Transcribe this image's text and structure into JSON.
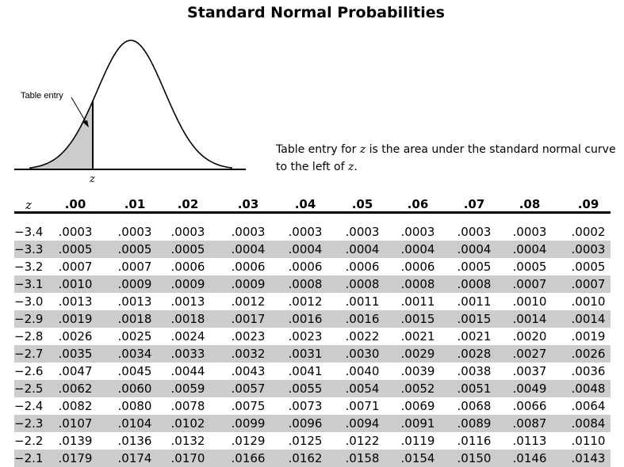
{
  "title": "Standard Normal Probabilities",
  "figure": {
    "annotation": "Table entry",
    "axis_label": "z",
    "shade_color": "#cccccc"
  },
  "caption": {
    "part1": "Table entry for ",
    "z1": "z",
    "part2": " is the area under the standard normal curve",
    "part3": "to the left of ",
    "z2": "z",
    "part4": "."
  },
  "table": {
    "z_header": "z",
    "columns": [
      ".00",
      ".01",
      ".02",
      ".03",
      ".04",
      ".05",
      ".06",
      ".07",
      ".08",
      ".09"
    ],
    "rows": [
      {
        "z": "−3.4",
        "values": [
          ".0003",
          ".0003",
          ".0003",
          ".0003",
          ".0003",
          ".0003",
          ".0003",
          ".0003",
          ".0003",
          ".0002"
        ]
      },
      {
        "z": "−3.3",
        "values": [
          ".0005",
          ".0005",
          ".0005",
          ".0004",
          ".0004",
          ".0004",
          ".0004",
          ".0004",
          ".0004",
          ".0003"
        ]
      },
      {
        "z": "−3.2",
        "values": [
          ".0007",
          ".0007",
          ".0006",
          ".0006",
          ".0006",
          ".0006",
          ".0006",
          ".0005",
          ".0005",
          ".0005"
        ]
      },
      {
        "z": "−3.1",
        "values": [
          ".0010",
          ".0009",
          ".0009",
          ".0009",
          ".0008",
          ".0008",
          ".0008",
          ".0008",
          ".0007",
          ".0007"
        ]
      },
      {
        "z": "−3.0",
        "values": [
          ".0013",
          ".0013",
          ".0013",
          ".0012",
          ".0012",
          ".0011",
          ".0011",
          ".0011",
          ".0010",
          ".0010"
        ]
      },
      {
        "z": "−2.9",
        "values": [
          ".0019",
          ".0018",
          ".0018",
          ".0017",
          ".0016",
          ".0016",
          ".0015",
          ".0015",
          ".0014",
          ".0014"
        ]
      },
      {
        "z": "−2.8",
        "values": [
          ".0026",
          ".0025",
          ".0024",
          ".0023",
          ".0023",
          ".0022",
          ".0021",
          ".0021",
          ".0020",
          ".0019"
        ]
      },
      {
        "z": "−2.7",
        "values": [
          ".0035",
          ".0034",
          ".0033",
          ".0032",
          ".0031",
          ".0030",
          ".0029",
          ".0028",
          ".0027",
          ".0026"
        ]
      },
      {
        "z": "−2.6",
        "values": [
          ".0047",
          ".0045",
          ".0044",
          ".0043",
          ".0041",
          ".0040",
          ".0039",
          ".0038",
          ".0037",
          ".0036"
        ]
      },
      {
        "z": "−2.5",
        "values": [
          ".0062",
          ".0060",
          ".0059",
          ".0057",
          ".0055",
          ".0054",
          ".0052",
          ".0051",
          ".0049",
          ".0048"
        ]
      },
      {
        "z": "−2.4",
        "values": [
          ".0082",
          ".0080",
          ".0078",
          ".0075",
          ".0073",
          ".0071",
          ".0069",
          ".0068",
          ".0066",
          ".0064"
        ]
      },
      {
        "z": "−2.3",
        "values": [
          ".0107",
          ".0104",
          ".0102",
          ".0099",
          ".0096",
          ".0094",
          ".0091",
          ".0089",
          ".0087",
          ".0084"
        ]
      },
      {
        "z": "−2.2",
        "values": [
          ".0139",
          ".0136",
          ".0132",
          ".0129",
          ".0125",
          ".0122",
          ".0119",
          ".0116",
          ".0113",
          ".0110"
        ]
      },
      {
        "z": "−2.1",
        "values": [
          ".0179",
          ".0174",
          ".0170",
          ".0166",
          ".0162",
          ".0158",
          ".0154",
          ".0150",
          ".0146",
          ".0143"
        ]
      }
    ]
  }
}
